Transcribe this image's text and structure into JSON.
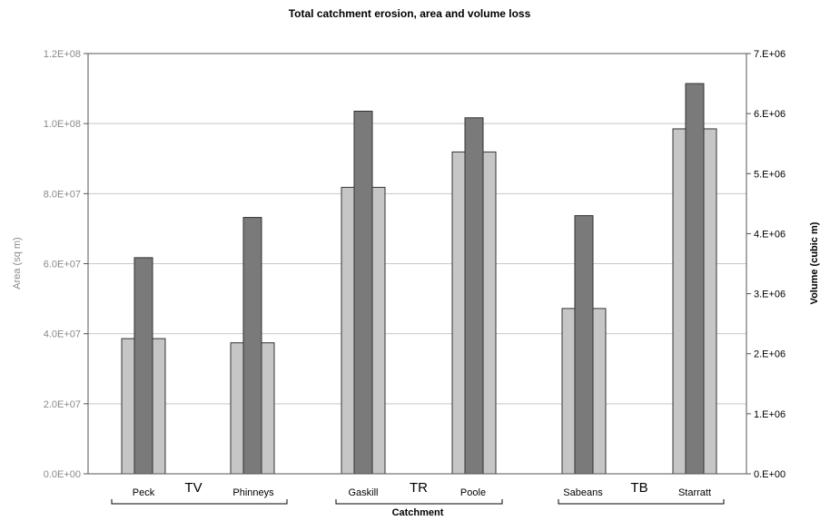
{
  "chart_data": {
    "type": "bar",
    "title": "Total catchment erosion, area and volume loss",
    "xlabel": "Catchment",
    "ylabel_left": "Area (sq m)",
    "ylabel_right": "Volume (cubic m)",
    "left_ylim": [
      0,
      120000000
    ],
    "right_ylim": [
      0,
      7000000
    ],
    "left_ticks": [
      "0.0E+00",
      "2.0E+07",
      "4.0E+07",
      "6.0E+07",
      "8.0E+07",
      "1.0E+08",
      "1.2E+08"
    ],
    "right_ticks": [
      "0.E+00",
      "1.E+06",
      "2.E+06",
      "3.E+06",
      "4.E+06",
      "5.E+06",
      "6.E+06",
      "7.E+06"
    ],
    "categories": [
      "Peck",
      "Phinneys",
      "Gaskill",
      "Poole",
      "Sabeans",
      "Starratt"
    ],
    "groups": [
      {
        "label": "TV",
        "categories": [
          "Peck",
          "Phinneys"
        ]
      },
      {
        "label": "TR",
        "categories": [
          "Gaskill",
          "Poole"
        ]
      },
      {
        "label": "TB",
        "categories": [
          "Sabeans",
          "Starratt"
        ]
      }
    ],
    "series": [
      {
        "axis": "left",
        "color": "#c6c6c6",
        "values": [
          38600000,
          37400000,
          81800000,
          91900000,
          47200000,
          98500000
        ]
      },
      {
        "axis": "right",
        "color": "#7a7a7a",
        "values": [
          3600000,
          4270000,
          6040000,
          5930000,
          4300000,
          6500000
        ]
      }
    ],
    "grid": true,
    "legend": "none"
  }
}
